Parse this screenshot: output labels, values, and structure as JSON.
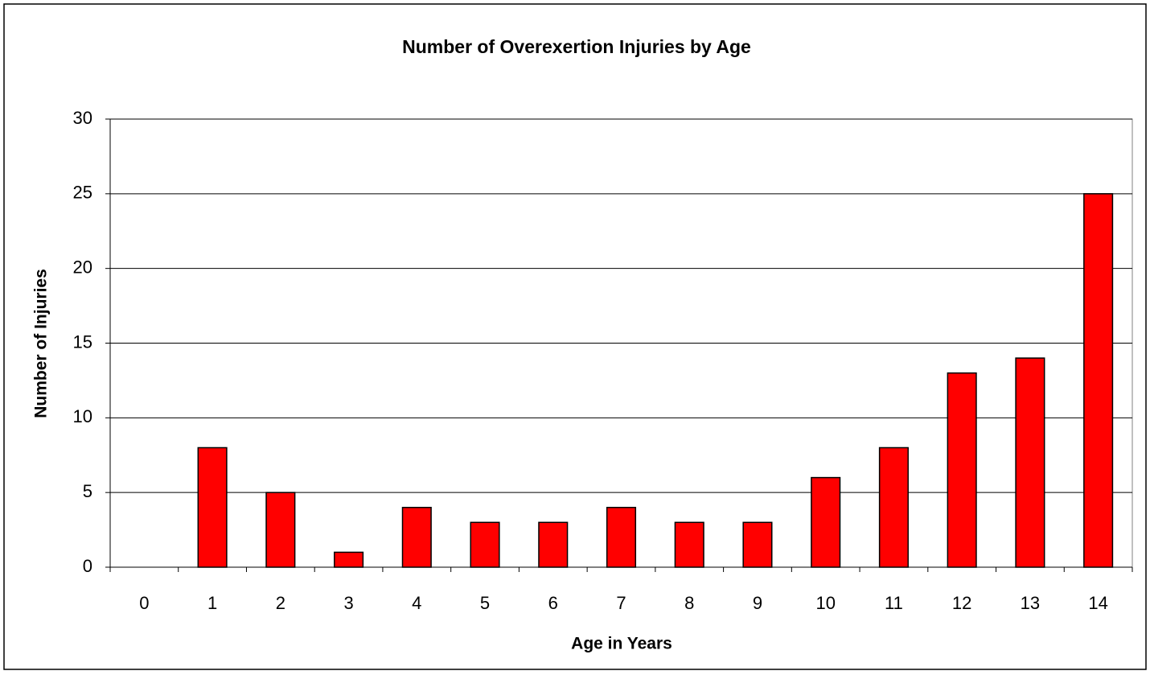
{
  "chart_data": {
    "type": "bar",
    "title": "Number of Overexertion Injuries by Age",
    "x_label": "Age in Years",
    "y_label": "Number of Injuries",
    "categories": [
      "0",
      "1",
      "2",
      "3",
      "4",
      "5",
      "6",
      "7",
      "8",
      "9",
      "10",
      "11",
      "12",
      "13",
      "14"
    ],
    "values": [
      0,
      8,
      5,
      1,
      4,
      3,
      3,
      4,
      3,
      3,
      6,
      8,
      13,
      14,
      25
    ],
    "color": "#ff0000",
    "ylim": [
      0,
      30
    ],
    "yticks": [
      0,
      5,
      10,
      15,
      20,
      25,
      30
    ],
    "grid": true
  }
}
